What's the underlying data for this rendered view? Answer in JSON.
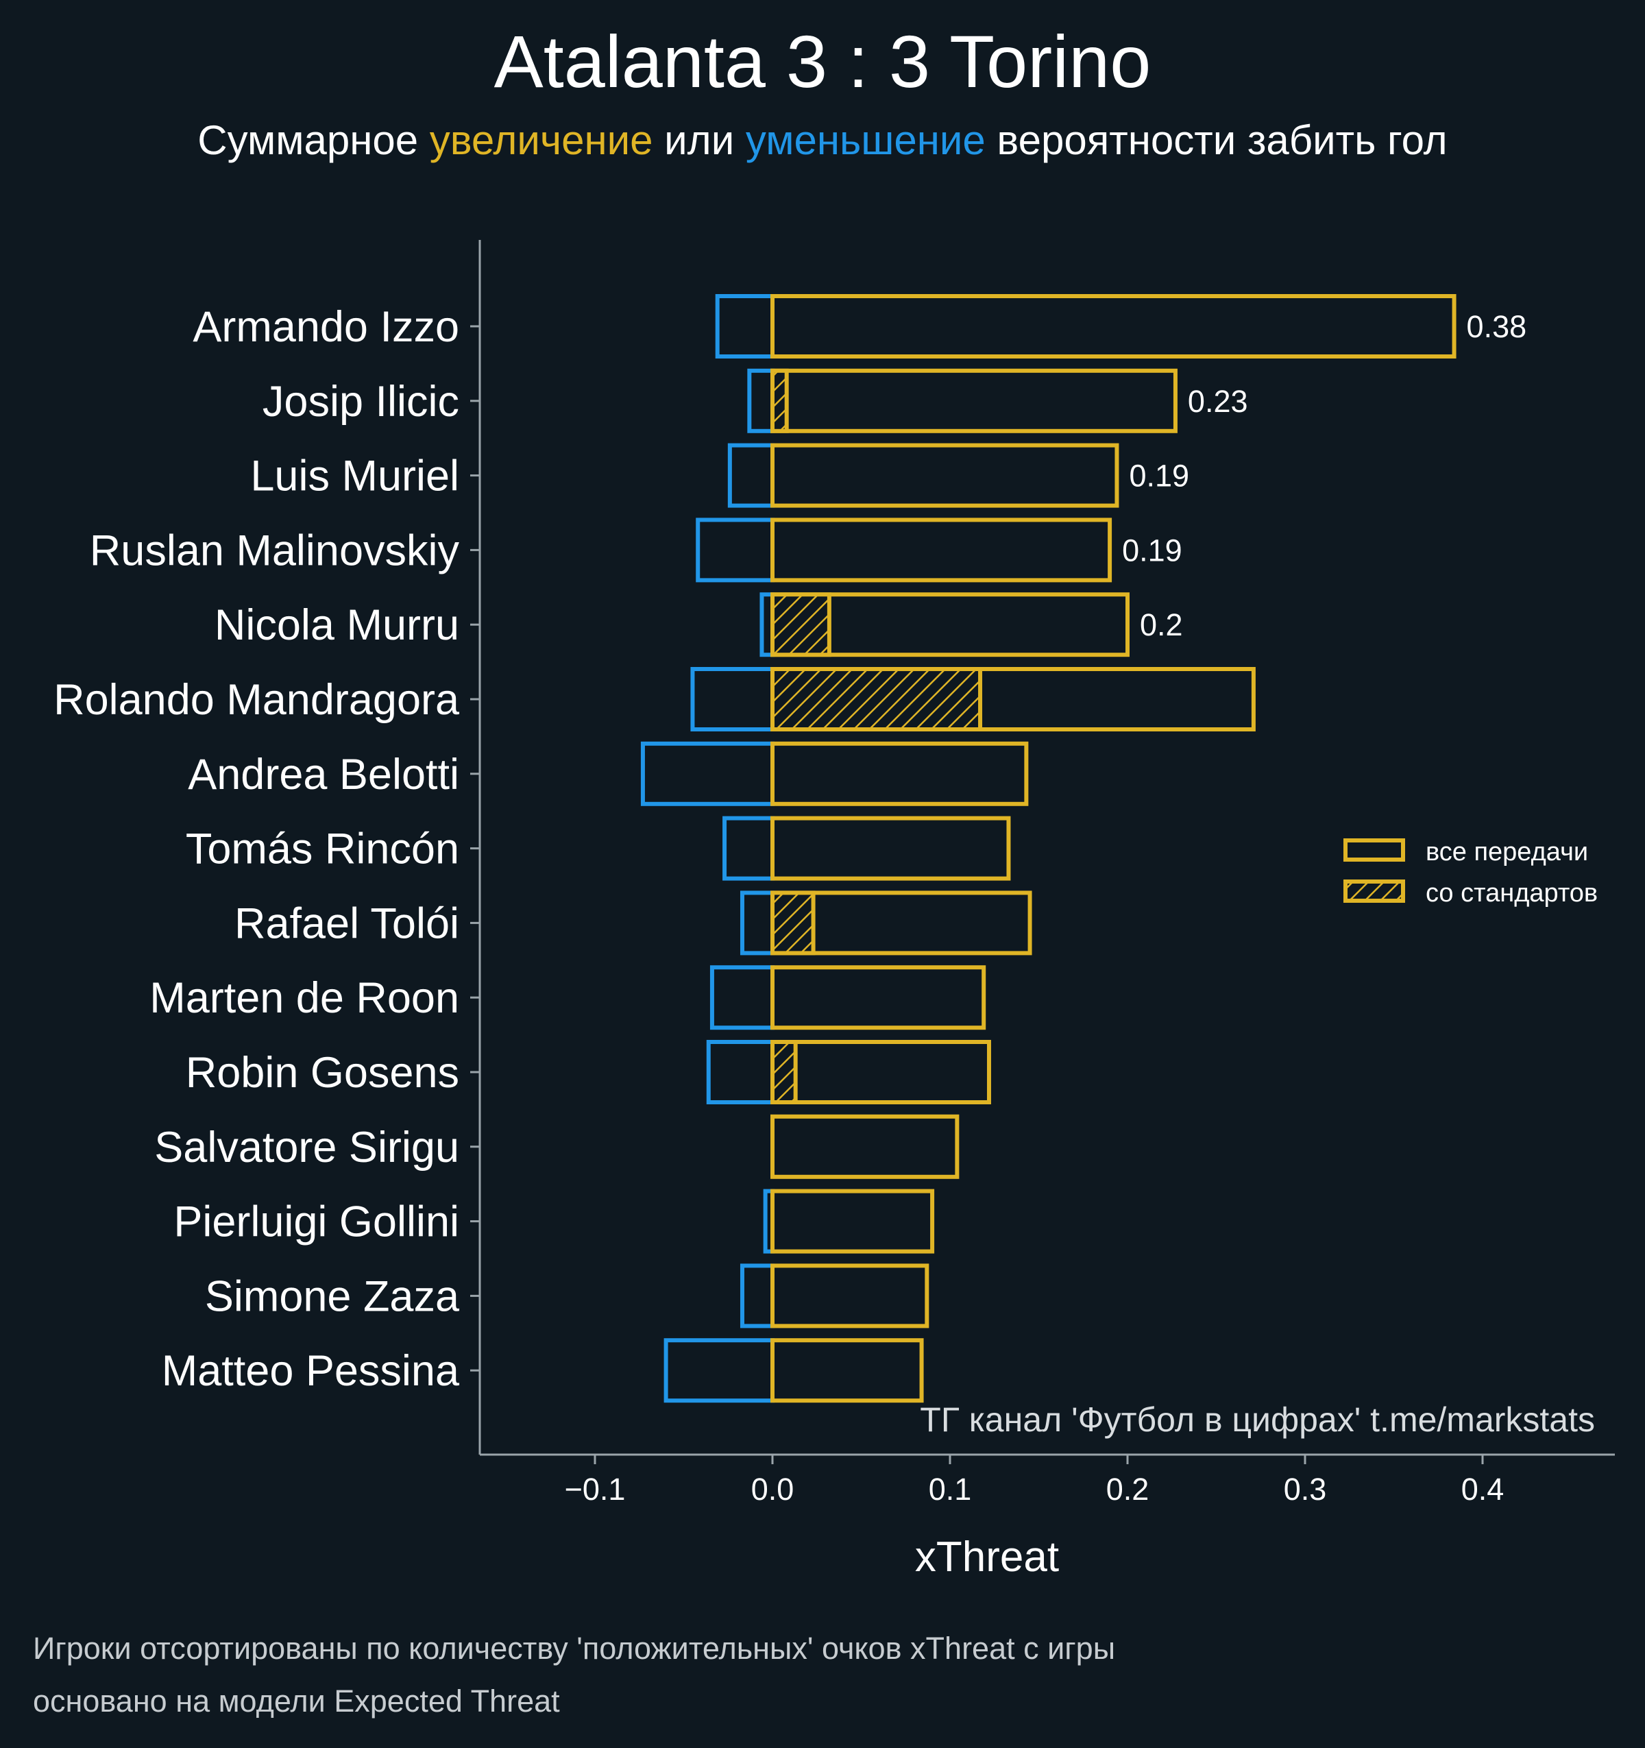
{
  "colors": {
    "background": "#0e1820",
    "positive": "#e0b526",
    "negative": "#2196e8",
    "axis": "#9aa4aa",
    "text": "#ffffff"
  },
  "header": {
    "title": "Atalanta 3 : 3 Torino",
    "subtitle": {
      "part1": "Суммарное ",
      "highlight_positive": "увеличение",
      "part2": " или ",
      "highlight_negative": "уменьшение",
      "part3": " вероятности забить гол"
    }
  },
  "legend": {
    "all_passes": "все передачи",
    "set_pieces": "со стандартов"
  },
  "credit": "ТГ канал 'Футбол в цифрах'  t.me/markstats",
  "footnotes": [
    "Игроки отсортированы по количеству 'положительных' очков xThreat с игры",
    "основано на модели Expected Threat"
  ],
  "chart_data": {
    "type": "bar",
    "orientation": "horizontal",
    "xlabel": "xThreat",
    "xlim": [
      -0.165,
      0.475
    ],
    "xticks": [
      -0.1,
      0.0,
      0.1,
      0.2,
      0.3,
      0.4
    ],
    "xtick_labels": [
      "−0.1",
      "0.0",
      "0.1",
      "0.2",
      "0.3",
      "0.4"
    ],
    "categories": [
      "Armando Izzo",
      "Josip Ilicic",
      "Luis Muriel",
      "Ruslan Malinovskiy",
      "Nicola Murru",
      "Rolando Mandragora",
      "Andrea Belotti",
      "Tomás Rincón",
      "Rafael Tolói",
      "Marten de Roon",
      "Robin Gosens",
      "Salvatore Sirigu",
      "Pierluigi Gollini",
      "Simone Zaza",
      "Matteo Pessina"
    ],
    "series": [
      {
        "name": "все передачи",
        "values": [
          0.384,
          0.227,
          0.194,
          0.19,
          0.2,
          0.271,
          0.143,
          0.133,
          0.145,
          0.119,
          0.122,
          0.104,
          0.09,
          0.087,
          0.084
        ]
      },
      {
        "name": "со стандартов",
        "values": [
          0,
          0.008,
          0,
          0,
          0.032,
          0.117,
          0,
          0,
          0.023,
          0,
          0.013,
          0,
          0,
          0,
          0
        ]
      },
      {
        "values": [
          -0.031,
          -0.013,
          -0.024,
          -0.042,
          -0.006,
          -0.045,
          -0.073,
          -0.027,
          -0.017,
          -0.034,
          -0.036,
          0,
          -0.004,
          -0.017,
          -0.06
        ]
      }
    ],
    "value_labels": [
      "0.38",
      "0.23",
      "0.19",
      "0.19",
      "0.2",
      "",
      "",
      "",
      "",
      "",
      "",
      "",
      "",
      "",
      ""
    ],
    "legend_position": "center-right"
  }
}
